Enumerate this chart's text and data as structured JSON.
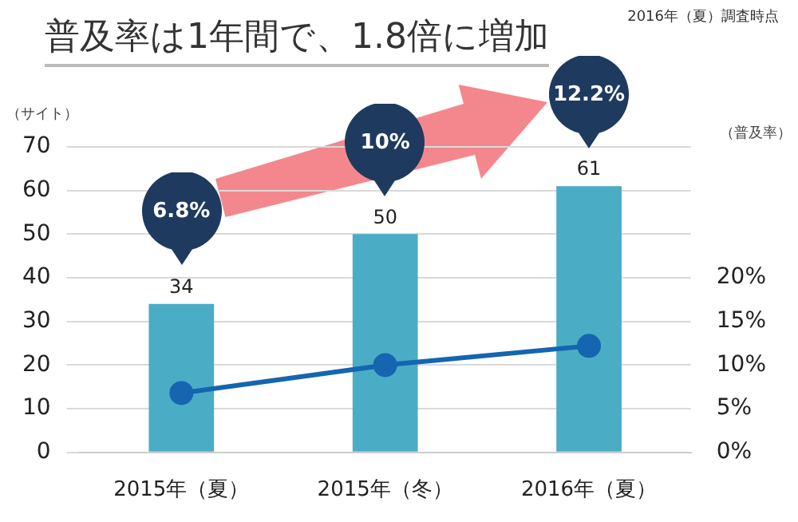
{
  "chart_data": {
    "type": "bar",
    "title": "普及率は1年間で、1.8倍に増加",
    "annotations": [
      "2016年（夏）調査時点",
      "6.8%",
      "10%",
      "12.2%"
    ],
    "ylabel": "（サイト）",
    "y2label": "（普及率）",
    "categories": [
      "2015年（夏）",
      "2015年（冬）",
      "2016年（夏）"
    ],
    "series": [
      {
        "color": "#4bacc6",
        "values": [
          34,
          50,
          61
        ],
        "value_labels": [
          "34",
          "50",
          "61"
        ]
      },
      {
        "type": "line",
        "axis": "y2",
        "color": "#1565b0",
        "values": [
          6.8,
          10,
          12.2
        ]
      }
    ],
    "ylim": [
      0,
      70
    ],
    "yticks": [
      0,
      10,
      20,
      30,
      40,
      50,
      60,
      70
    ],
    "y2lim": [
      0,
      35
    ],
    "y2ticks": [
      {
        "value": 0,
        "label": "0%"
      },
      {
        "value": 5,
        "label": "5%"
      },
      {
        "value": 10,
        "label": "10%"
      },
      {
        "value": 15,
        "label": "15%"
      },
      {
        "value": 20,
        "label": "20%"
      }
    ],
    "grid": "y",
    "marker": "circle",
    "line_style": "solid"
  }
}
